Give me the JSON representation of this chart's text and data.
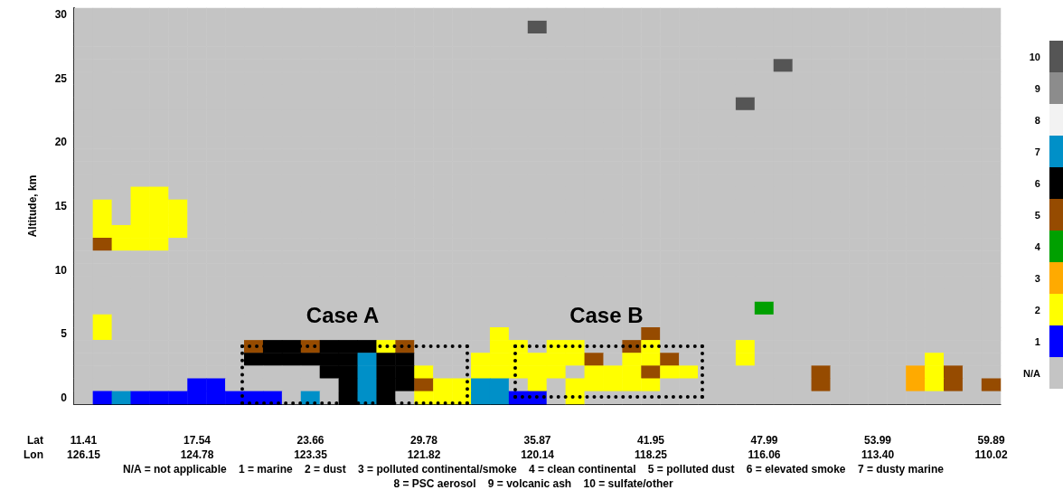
{
  "chart_data": {
    "type": "heatmap",
    "ylabel": "Altitude, km",
    "categories": [
      "11.41\n126.15",
      null,
      null,
      null,
      null,
      null,
      "17.54\n124.78",
      null,
      null,
      null,
      null,
      null,
      "23.66\n123.35",
      null,
      null,
      null,
      null,
      null,
      "29.78\n121.82",
      null,
      null,
      null,
      null,
      null,
      "35.87\n120.14",
      null,
      null,
      null,
      null,
      null,
      "41.95\n118.25",
      null,
      null,
      null,
      null,
      null,
      "47.99\n116.06",
      null,
      null,
      null,
      null,
      null,
      "53.99\n113.40",
      null,
      null,
      null,
      null,
      null,
      "59.89\n110.02"
    ],
    "y_categories": [
      "30",
      null,
      null,
      null,
      null,
      "25",
      null,
      null,
      null,
      null,
      "20",
      null,
      null,
      null,
      null,
      "15",
      null,
      null,
      null,
      null,
      "10",
      null,
      null,
      null,
      null,
      "5",
      null,
      null,
      null,
      null,
      "0"
    ],
    "cells": [
      [
        0,
        0,
        0,
        0,
        0,
        0,
        0,
        0,
        0,
        0,
        0,
        0,
        0,
        0,
        0,
        0,
        0,
        0,
        0,
        0,
        0,
        0,
        0,
        0,
        0,
        0,
        0,
        0,
        0,
        0,
        0,
        0,
        0,
        0,
        0,
        0,
        0,
        0,
        0,
        0,
        0,
        0,
        0,
        0,
        0,
        0,
        0,
        0,
        0
      ],
      [
        0,
        0,
        0,
        0,
        0,
        0,
        0,
        0,
        0,
        0,
        0,
        0,
        0,
        0,
        0,
        0,
        0,
        0,
        0,
        0,
        0,
        0,
        0,
        0,
        10,
        0,
        0,
        0,
        0,
        0,
        0,
        0,
        0,
        0,
        0,
        0,
        0,
        0,
        0,
        0,
        0,
        0,
        0,
        0,
        0,
        0,
        0,
        0,
        0
      ],
      [
        0,
        0,
        0,
        0,
        0,
        0,
        0,
        0,
        0,
        0,
        0,
        0,
        0,
        0,
        0,
        0,
        0,
        0,
        0,
        0,
        0,
        0,
        0,
        0,
        0,
        0,
        0,
        0,
        0,
        0,
        0,
        0,
        0,
        0,
        0,
        0,
        0,
        0,
        0,
        0,
        0,
        0,
        0,
        0,
        0,
        0,
        0,
        0,
        0
      ],
      [
        0,
        0,
        0,
        0,
        0,
        0,
        0,
        0,
        0,
        0,
        0,
        0,
        0,
        0,
        0,
        0,
        0,
        0,
        0,
        0,
        0,
        0,
        0,
        0,
        0,
        0,
        0,
        0,
        0,
        0,
        0,
        0,
        0,
        0,
        0,
        0,
        0,
        0,
        0,
        0,
        0,
        0,
        0,
        0,
        0,
        0,
        0,
        0,
        0
      ],
      [
        0,
        0,
        0,
        0,
        0,
        0,
        0,
        0,
        0,
        0,
        0,
        0,
        0,
        0,
        0,
        0,
        0,
        0,
        0,
        0,
        0,
        0,
        0,
        0,
        0,
        0,
        0,
        0,
        0,
        0,
        0,
        0,
        0,
        0,
        0,
        0,
        0,
        10,
        0,
        0,
        0,
        0,
        0,
        0,
        0,
        0,
        0,
        0,
        0
      ],
      [
        0,
        0,
        0,
        0,
        0,
        0,
        0,
        0,
        0,
        0,
        0,
        0,
        0,
        0,
        0,
        0,
        0,
        0,
        0,
        0,
        0,
        0,
        0,
        0,
        0,
        0,
        0,
        0,
        0,
        0,
        0,
        0,
        0,
        0,
        0,
        0,
        0,
        0,
        0,
        0,
        0,
        0,
        0,
        0,
        0,
        0,
        0,
        0,
        0
      ],
      [
        0,
        0,
        0,
        0,
        0,
        0,
        0,
        0,
        0,
        0,
        0,
        0,
        0,
        0,
        0,
        0,
        0,
        0,
        0,
        0,
        0,
        0,
        0,
        0,
        0,
        0,
        0,
        0,
        0,
        0,
        0,
        0,
        0,
        0,
        0,
        0,
        0,
        0,
        0,
        0,
        0,
        0,
        0,
        0,
        0,
        0,
        0,
        0,
        0
      ],
      [
        0,
        0,
        0,
        0,
        0,
        0,
        0,
        0,
        0,
        0,
        0,
        0,
        0,
        0,
        0,
        0,
        0,
        0,
        0,
        0,
        0,
        0,
        0,
        0,
        0,
        0,
        0,
        0,
        0,
        0,
        0,
        0,
        0,
        0,
        0,
        10,
        0,
        0,
        0,
        0,
        0,
        0,
        0,
        0,
        0,
        0,
        0,
        0,
        0
      ],
      [
        0,
        0,
        0,
        0,
        0,
        0,
        0,
        0,
        0,
        0,
        0,
        0,
        0,
        0,
        0,
        0,
        0,
        0,
        0,
        0,
        0,
        0,
        0,
        0,
        0,
        0,
        0,
        0,
        0,
        0,
        0,
        0,
        0,
        0,
        0,
        0,
        0,
        0,
        0,
        0,
        0,
        0,
        0,
        0,
        0,
        0,
        0,
        0,
        0
      ],
      [
        0,
        0,
        0,
        0,
        0,
        0,
        0,
        0,
        0,
        0,
        0,
        0,
        0,
        0,
        0,
        0,
        0,
        0,
        0,
        0,
        0,
        0,
        0,
        0,
        0,
        0,
        0,
        0,
        0,
        0,
        0,
        0,
        0,
        0,
        0,
        0,
        0,
        0,
        0,
        0,
        0,
        0,
        0,
        0,
        0,
        0,
        0,
        0,
        0
      ],
      [
        0,
        0,
        0,
        0,
        0,
        0,
        0,
        0,
        0,
        0,
        0,
        0,
        0,
        0,
        0,
        0,
        0,
        0,
        0,
        0,
        0,
        0,
        0,
        0,
        0,
        0,
        0,
        0,
        0,
        0,
        0,
        0,
        0,
        0,
        0,
        0,
        0,
        0,
        0,
        0,
        0,
        0,
        0,
        0,
        0,
        0,
        0,
        0,
        0
      ],
      [
        0,
        0,
        0,
        0,
        0,
        0,
        0,
        0,
        0,
        0,
        0,
        0,
        0,
        0,
        0,
        0,
        0,
        0,
        0,
        0,
        0,
        0,
        0,
        0,
        0,
        0,
        0,
        0,
        0,
        0,
        0,
        0,
        0,
        0,
        0,
        0,
        0,
        0,
        0,
        0,
        0,
        0,
        0,
        0,
        0,
        0,
        0,
        0,
        0
      ],
      [
        0,
        0,
        0,
        0,
        0,
        0,
        0,
        0,
        0,
        0,
        0,
        0,
        0,
        0,
        0,
        0,
        0,
        0,
        0,
        0,
        0,
        0,
        0,
        0,
        0,
        0,
        0,
        0,
        0,
        0,
        0,
        0,
        0,
        0,
        0,
        0,
        0,
        0,
        0,
        0,
        0,
        0,
        0,
        0,
        0,
        0,
        0,
        0,
        0
      ],
      [
        0,
        0,
        0,
        0,
        0,
        0,
        0,
        0,
        0,
        0,
        0,
        0,
        0,
        0,
        0,
        0,
        0,
        0,
        0,
        0,
        0,
        0,
        0,
        0,
        0,
        0,
        0,
        0,
        0,
        0,
        0,
        0,
        0,
        0,
        0,
        0,
        0,
        0,
        0,
        0,
        0,
        0,
        0,
        0,
        0,
        0,
        0,
        0,
        0
      ],
      [
        0,
        0,
        0,
        2,
        2,
        0,
        0,
        0,
        0,
        0,
        0,
        0,
        0,
        0,
        0,
        0,
        0,
        0,
        0,
        0,
        0,
        0,
        0,
        0,
        0,
        0,
        0,
        0,
        0,
        0,
        0,
        0,
        0,
        0,
        0,
        0,
        0,
        0,
        0,
        0,
        0,
        0,
        0,
        0,
        0,
        0,
        0,
        0,
        0
      ],
      [
        0,
        2,
        0,
        2,
        2,
        2,
        0,
        0,
        0,
        0,
        0,
        0,
        0,
        0,
        0,
        0,
        0,
        0,
        0,
        0,
        0,
        0,
        0,
        0,
        0,
        0,
        0,
        0,
        0,
        0,
        0,
        0,
        0,
        0,
        0,
        0,
        0,
        0,
        0,
        0,
        0,
        0,
        0,
        0,
        0,
        0,
        0,
        0,
        0
      ],
      [
        0,
        2,
        0,
        2,
        2,
        2,
        0,
        0,
        0,
        0,
        0,
        0,
        0,
        0,
        0,
        0,
        0,
        0,
        0,
        0,
        0,
        0,
        0,
        0,
        0,
        0,
        0,
        0,
        0,
        0,
        0,
        0,
        0,
        0,
        0,
        0,
        0,
        0,
        0,
        0,
        0,
        0,
        0,
        0,
        0,
        0,
        0,
        0,
        0
      ],
      [
        0,
        2,
        2,
        2,
        2,
        2,
        0,
        0,
        0,
        0,
        0,
        0,
        0,
        0,
        0,
        0,
        0,
        0,
        0,
        0,
        0,
        0,
        0,
        0,
        0,
        0,
        0,
        0,
        0,
        0,
        0,
        0,
        0,
        0,
        0,
        0,
        0,
        0,
        0,
        0,
        0,
        0,
        0,
        0,
        0,
        0,
        0,
        0,
        0
      ],
      [
        0,
        5,
        2,
        2,
        2,
        0,
        0,
        0,
        0,
        0,
        0,
        0,
        0,
        0,
        0,
        0,
        0,
        0,
        0,
        0,
        0,
        0,
        0,
        0,
        0,
        0,
        0,
        0,
        0,
        0,
        0,
        0,
        0,
        0,
        0,
        0,
        0,
        0,
        0,
        0,
        0,
        0,
        0,
        0,
        0,
        0,
        0,
        0,
        0
      ],
      [
        0,
        0,
        0,
        0,
        0,
        0,
        0,
        0,
        0,
        0,
        0,
        0,
        0,
        0,
        0,
        0,
        0,
        0,
        0,
        0,
        0,
        0,
        0,
        0,
        0,
        0,
        0,
        0,
        0,
        0,
        0,
        0,
        0,
        0,
        0,
        0,
        0,
        0,
        0,
        0,
        0,
        0,
        0,
        0,
        0,
        0,
        0,
        0,
        0
      ],
      [
        0,
        0,
        0,
        0,
        0,
        0,
        0,
        0,
        0,
        0,
        0,
        0,
        0,
        0,
        0,
        0,
        0,
        0,
        0,
        0,
        0,
        0,
        0,
        0,
        0,
        0,
        0,
        0,
        0,
        0,
        0,
        0,
        0,
        0,
        0,
        0,
        0,
        0,
        0,
        0,
        0,
        0,
        0,
        0,
        0,
        0,
        0,
        0,
        0
      ],
      [
        0,
        0,
        0,
        0,
        0,
        0,
        0,
        0,
        0,
        0,
        0,
        0,
        0,
        0,
        0,
        0,
        0,
        0,
        0,
        0,
        0,
        0,
        0,
        0,
        0,
        0,
        0,
        0,
        0,
        0,
        0,
        0,
        0,
        0,
        0,
        0,
        0,
        0,
        0,
        0,
        0,
        0,
        0,
        0,
        0,
        0,
        0,
        0,
        0
      ],
      [
        0,
        0,
        0,
        0,
        0,
        0,
        0,
        0,
        0,
        0,
        0,
        0,
        0,
        0,
        0,
        0,
        0,
        0,
        0,
        0,
        0,
        0,
        0,
        0,
        0,
        0,
        0,
        0,
        0,
        0,
        0,
        0,
        0,
        0,
        0,
        0,
        0,
        0,
        0,
        0,
        0,
        0,
        0,
        0,
        0,
        0,
        0,
        0,
        0
      ],
      [
        0,
        0,
        0,
        0,
        0,
        0,
        0,
        0,
        0,
        0,
        0,
        0,
        0,
        0,
        0,
        0,
        0,
        0,
        0,
        0,
        0,
        0,
        0,
        0,
        0,
        0,
        0,
        0,
        0,
        0,
        0,
        0,
        0,
        0,
        0,
        0,
        4,
        0,
        0,
        0,
        0,
        0,
        0,
        0,
        0,
        0,
        0,
        0,
        0
      ],
      [
        0,
        2,
        0,
        0,
        0,
        0,
        0,
        0,
        0,
        0,
        0,
        0,
        0,
        0,
        0,
        0,
        0,
        0,
        0,
        0,
        0,
        0,
        0,
        0,
        0,
        0,
        0,
        0,
        0,
        0,
        0,
        0,
        0,
        0,
        0,
        0,
        0,
        0,
        0,
        0,
        0,
        0,
        0,
        0,
        0,
        0,
        0,
        0,
        0
      ],
      [
        0,
        2,
        0,
        0,
        0,
        0,
        0,
        0,
        0,
        0,
        0,
        0,
        0,
        0,
        0,
        0,
        0,
        0,
        0,
        0,
        0,
        0,
        2,
        0,
        0,
        0,
        0,
        0,
        0,
        0,
        5,
        0,
        0,
        0,
        0,
        0,
        0,
        0,
        0,
        0,
        0,
        0,
        0,
        0,
        0,
        0,
        0,
        0,
        0
      ],
      [
        0,
        0,
        0,
        0,
        0,
        0,
        0,
        0,
        0,
        5,
        6,
        6,
        5,
        6,
        6,
        6,
        2,
        5,
        0,
        0,
        0,
        0,
        2,
        2,
        0,
        2,
        2,
        0,
        0,
        5,
        2,
        0,
        0,
        0,
        0,
        2,
        0,
        0,
        0,
        0,
        0,
        0,
        0,
        0,
        0,
        0,
        0,
        0,
        0
      ],
      [
        0,
        0,
        0,
        0,
        0,
        0,
        0,
        0,
        0,
        6,
        6,
        6,
        6,
        6,
        6,
        7,
        6,
        6,
        0,
        0,
        0,
        2,
        2,
        2,
        2,
        2,
        2,
        5,
        0,
        2,
        2,
        5,
        0,
        0,
        0,
        2,
        0,
        0,
        0,
        0,
        0,
        0,
        0,
        0,
        0,
        2,
        0,
        0,
        0
      ],
      [
        0,
        0,
        0,
        0,
        0,
        0,
        0,
        0,
        0,
        0,
        0,
        0,
        0,
        6,
        6,
        7,
        6,
        6,
        2,
        0,
        0,
        2,
        2,
        2,
        2,
        2,
        0,
        2,
        2,
        2,
        5,
        2,
        2,
        0,
        0,
        0,
        0,
        0,
        0,
        5,
        0,
        0,
        0,
        0,
        3,
        2,
        5,
        0,
        0
      ],
      [
        0,
        0,
        0,
        0,
        0,
        0,
        1,
        1,
        0,
        0,
        0,
        0,
        0,
        0,
        6,
        7,
        6,
        6,
        5,
        2,
        2,
        7,
        7,
        0,
        2,
        0,
        2,
        2,
        2,
        2,
        2,
        0,
        0,
        0,
        0,
        0,
        0,
        0,
        0,
        5,
        0,
        0,
        0,
        0,
        3,
        2,
        5,
        0,
        5
      ],
      [
        0,
        1,
        7,
        1,
        1,
        1,
        1,
        1,
        1,
        1,
        1,
        0,
        7,
        0,
        6,
        7,
        6,
        0,
        2,
        2,
        2,
        7,
        7,
        1,
        1,
        0,
        2,
        0,
        0,
        0,
        0,
        0,
        0,
        0,
        0,
        0,
        0,
        0,
        0,
        0,
        0,
        0,
        0,
        0,
        0,
        0,
        0,
        0,
        0
      ]
    ],
    "colors": [
      "#c4c4c4",
      "#0000ff",
      "#ffff00",
      "#ffaa00",
      "#00a000",
      "#964b00",
      "#000000",
      "#0090c8",
      "#f2f2f2",
      "#8c8c8c",
      "#555555"
    ],
    "clim": [
      -0.5,
      10.5
    ],
    "cticks": [
      {
        "value": 0,
        "label": "N/A"
      },
      1,
      2,
      3,
      4,
      5,
      6,
      7,
      8,
      9,
      10
    ],
    "annotations": [
      "Case A",
      "Case B",
      "Lat",
      "Lon",
      "N/A = not applicable    1 = marine    2 = dust    3 = polluted continental/smoke    4 = clean continental    5 = polluted dust    6 = elevated smoke    7 = dusty marine",
      "8 = PSC aerosol    9 = volcanic ash    10 = sulfate/other"
    ]
  }
}
